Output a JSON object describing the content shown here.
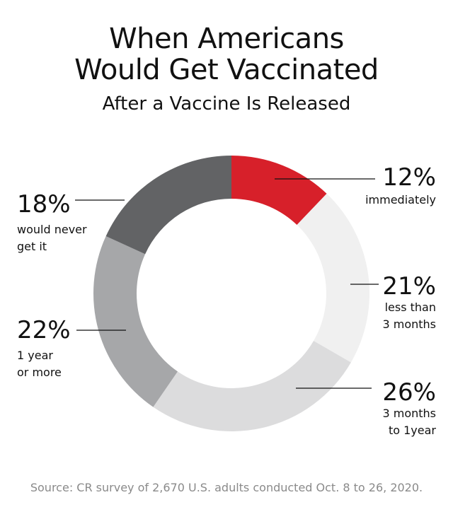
{
  "title_line1": "When Americans",
  "title_line2": "Would Get Vaccinated",
  "subtitle": "After a Vaccine Is Released",
  "source": "Source: CR survey of 2,670 U.S. adults conducted Oct. 8 to 26, 2020.",
  "chart_data": {
    "type": "pie",
    "title": "When Americans Would Get Vaccinated",
    "subtitle": "After a Vaccine Is Released",
    "donut": true,
    "slices": [
      {
        "value": 12,
        "pct_label": "12%",
        "label_lines": [
          "immediately"
        ],
        "color": "#d7202a"
      },
      {
        "value": 21,
        "pct_label": "21%",
        "label_lines": [
          "less than",
          "3 months"
        ],
        "color": "#f0f0f0"
      },
      {
        "value": 26,
        "pct_label": "26%",
        "label_lines": [
          "3 months",
          "to 1year"
        ],
        "color": "#dcdcdd"
      },
      {
        "value": 22,
        "pct_label": "22%",
        "label_lines": [
          "1 year",
          "or more"
        ],
        "color": "#a6a7a9"
      },
      {
        "value": 18,
        "pct_label": "18%",
        "label_lines": [
          "would never",
          "get it"
        ],
        "color": "#626365"
      }
    ]
  }
}
